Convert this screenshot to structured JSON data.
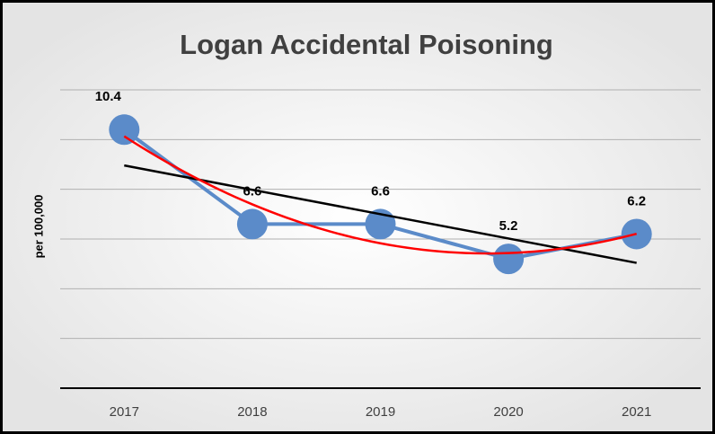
{
  "chart_data": {
    "type": "line",
    "title": "Logan Accidental Poisoning",
    "y_label": "per 100,000",
    "categories": [
      "2017",
      "2018",
      "2019",
      "2020",
      "2021"
    ],
    "series": [
      {
        "name": "Logan",
        "color": "#5b8bc9",
        "values": [
          10.4,
          6.6,
          6.6,
          5.2,
          6.2
        ]
      }
    ],
    "ylim": [
      0,
      12
    ],
    "yticks": [
      0,
      2,
      4,
      6,
      8,
      10,
      12
    ],
    "grid": true,
    "trendlines": [
      {
        "type": "linear",
        "color": "#000000"
      },
      {
        "type": "polynomial",
        "order": 2,
        "color": "#ff0000"
      }
    ]
  }
}
